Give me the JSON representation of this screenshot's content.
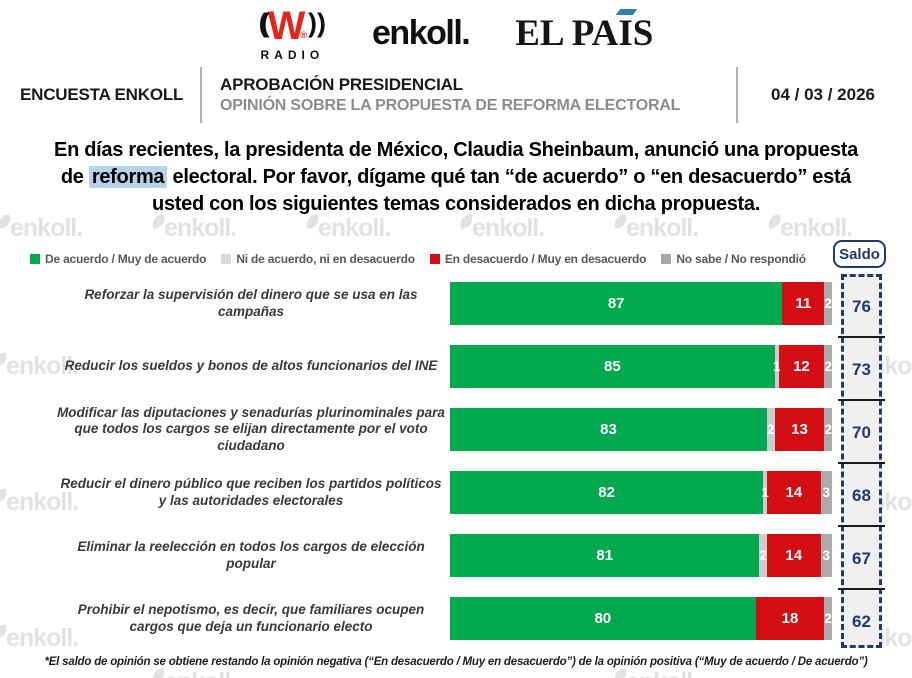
{
  "header": {
    "logos": {
      "wradio": {
        "paren_left": "((",
        "w": "W",
        "registered": "®",
        "paren_right": "))",
        "radio": "RADIO"
      },
      "enkoll": "enkoll.",
      "elpais": {
        "p1": "EL PA",
        "i": "I",
        "p2": "S"
      }
    },
    "band": {
      "left_label": "ENCUESTA ENKOLL",
      "title": "APROBACIÓN PRESIDENCIAL",
      "subtitle": "OPINIÓN SOBRE LA PROPUESTA DE REFORMA ELECTORAL",
      "date": "04 / 03 / 2026"
    }
  },
  "question": {
    "line1": "En días recientes, la presidenta de México, Claudia Sheinbaum, anunció una propuesta",
    "line2_pre": "de",
    "highlight": "reforma",
    "line2_post": "electoral. Por favor, dígame qué tan “de acuerdo” o “en desacuerdo” está",
    "line3": "usted con los siguientes temas considerados en dicha propuesta."
  },
  "saldo_label": "Saldo",
  "watermark_text": "enkoll.",
  "footnote": "*El saldo de opinión se obtiene restando la opinión negativa (“En desacuerdo / Muy en desacuerdo”) de la opinión positiva (“Muy de acuerdo / De acuerdo”)",
  "colors": {
    "agree": "#00A94E",
    "neutral": "#CDCDCD",
    "disagree": "#D40E15",
    "no_answer": "#ABABAB",
    "legend_neutral": "#D9D9D9",
    "legend_no_answer": "#A6A6A6",
    "navy": "#1E3A6E",
    "question_highlight": "#B7D3EA",
    "elpais_accent": "#2E7EB5"
  },
  "chart_data": {
    "type": "bar",
    "orientation": "horizontal",
    "stacked": true,
    "xlim": [
      0,
      100
    ],
    "legend": [
      {
        "label": "De acuerdo / Muy de acuerdo",
        "color": "#00A94E"
      },
      {
        "label": "Ni de acuerdo, ni en desacuerdo",
        "color": "#D9D9D9"
      },
      {
        "label": "En desacuerdo / Muy en desacuerdo",
        "color": "#D40E15"
      },
      {
        "label": "No sabe / No respondió",
        "color": "#A6A6A6"
      }
    ],
    "series_keys": [
      "agree",
      "neutral",
      "disagree",
      "no_answer"
    ],
    "saldo_column_label": "Saldo",
    "rows": [
      {
        "label": "Reforzar la supervisión del dinero que se usa en las campañas",
        "agree": 87,
        "neutral": 0,
        "disagree": 11,
        "no_answer": 2,
        "saldo": 76
      },
      {
        "label": "Reducir los sueldos y bonos de altos funcionarios del INE",
        "agree": 85,
        "neutral": 1,
        "disagree": 12,
        "no_answer": 2,
        "saldo": 73
      },
      {
        "label": "Modificar las diputaciones y senadurías plurinominales para que todos los cargos se elijan directamente por el voto ciudadano",
        "agree": 83,
        "neutral": 2,
        "disagree": 13,
        "no_answer": 2,
        "saldo": 70
      },
      {
        "label": "Reducir el dinero público que reciben los partidos políticos y las autoridades electorales",
        "agree": 82,
        "neutral": 1,
        "disagree": 14,
        "no_answer": 3,
        "saldo": 68
      },
      {
        "label": "Eliminar la reelección en todos los cargos de elección popular",
        "agree": 81,
        "neutral": 2,
        "disagree": 14,
        "no_answer": 3,
        "saldo": 67
      },
      {
        "label": "Prohibir el nepotismo, es decir, que familiares ocupen cargos que deja un funcionario electo",
        "agree": 80,
        "neutral": 0,
        "disagree": 18,
        "no_answer": 2,
        "saldo": 62
      }
    ]
  }
}
